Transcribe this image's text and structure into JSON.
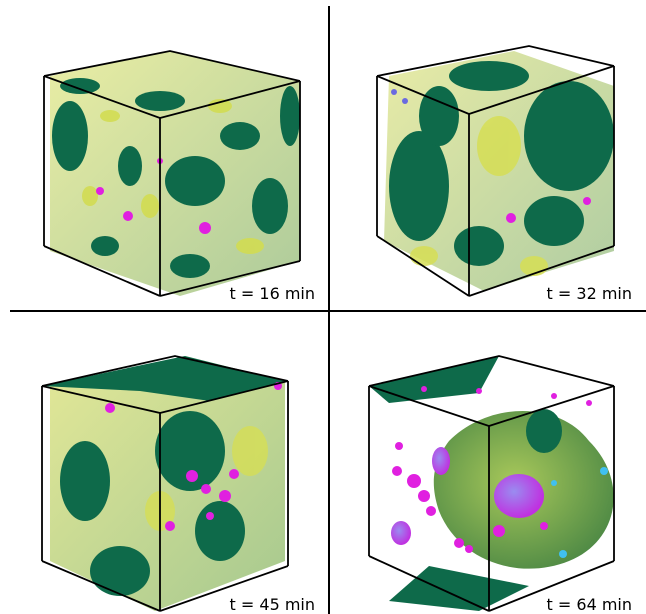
{
  "panels": [
    {
      "label": "t = 16 min"
    },
    {
      "label": "t = 32 min"
    },
    {
      "label": "t = 45 min"
    },
    {
      "label": "t = 64 min"
    }
  ],
  "colors": {
    "surface_dark": "#0e6a4a",
    "surface_light": "#c9d64a",
    "surface_mid": "#7fb24a",
    "droplet_magenta": "#e020e0",
    "droplet_blue": "#7a70e8",
    "droplet_cyan": "#40c0f0",
    "edge": "#000000"
  }
}
